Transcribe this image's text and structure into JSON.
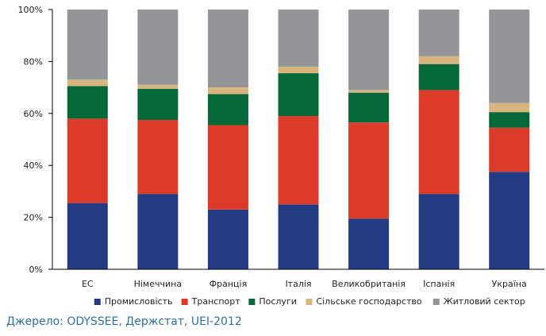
{
  "chart_data": {
    "type": "bar",
    "stacked": true,
    "categories": [
      "ЕС",
      "Німеччина",
      "Франція",
      "Італія",
      "Великобританія",
      "Іспанія",
      "Україна"
    ],
    "series": [
      {
        "name": "Промисловість",
        "color": "#233b82",
        "values": [
          25.5,
          29,
          23,
          25,
          19.5,
          29,
          37.5
        ]
      },
      {
        "name": "Транспорт",
        "color": "#db3b28",
        "values": [
          32.5,
          28.5,
          32.5,
          34,
          37,
          40,
          17
        ]
      },
      {
        "name": "Послуги",
        "color": "#056838",
        "values": [
          12.5,
          12,
          12,
          16.5,
          11.5,
          10,
          6
        ]
      },
      {
        "name": "Сільське господарство",
        "color": "#d8b57f",
        "values": [
          2.5,
          1.5,
          2.5,
          2.5,
          1,
          3,
          3.5
        ]
      },
      {
        "name": "Житловий сектор",
        "color": "#939598",
        "values": [
          27,
          29,
          30,
          22,
          31,
          18,
          36
        ]
      }
    ],
    "ylim": [
      0,
      100
    ],
    "yticks": [
      "0%",
      "20%",
      "40%",
      "60%",
      "80%",
      "100%"
    ],
    "ytick_values": [
      0,
      20,
      40,
      60,
      80,
      100
    ],
    "legend_position": "bottom",
    "grid": false
  },
  "source": "Джерело: ODYSSEE, Держстат, UEI-2012"
}
